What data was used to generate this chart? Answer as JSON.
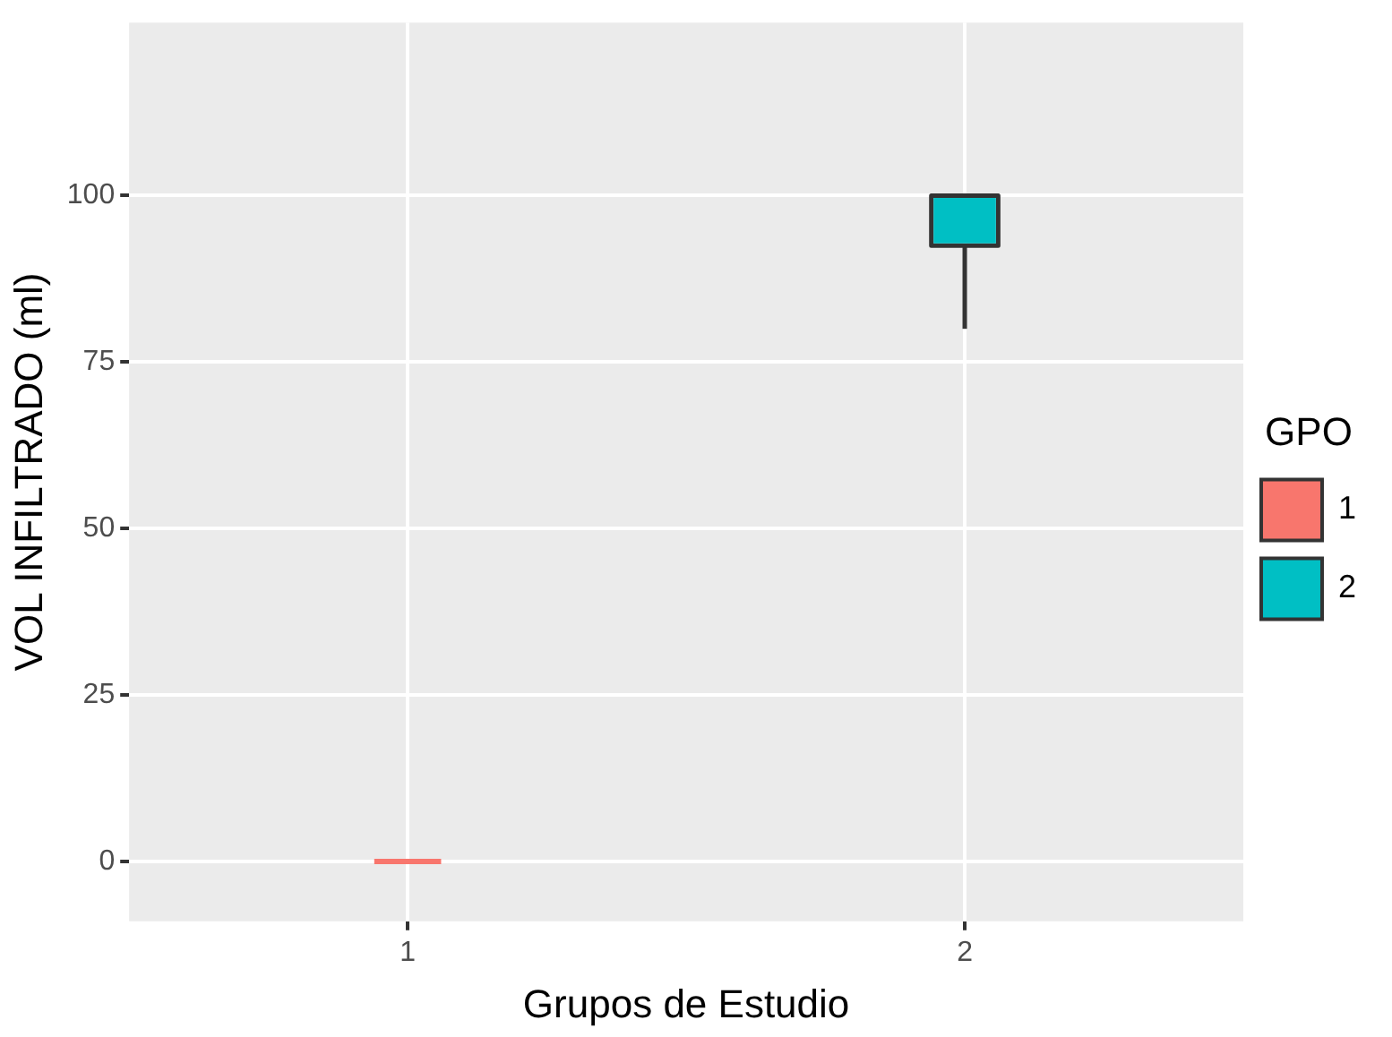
{
  "chart_data": {
    "type": "box",
    "xlabel": "Grupos de Estudio",
    "ylabel": "VOL INFILTRADO (ml)",
    "legend_title": "GPO",
    "categories": [
      "1",
      "2"
    ],
    "series": [
      {
        "name": "1",
        "color": "#f8766d",
        "boxes": [
          {
            "low": 0,
            "q1": 0,
            "median": 0,
            "q3": 0,
            "high": 0
          },
          null
        ]
      },
      {
        "name": "2",
        "color": "#00bfc4",
        "boxes": [
          null,
          {
            "low": 80,
            "q1": 92.5,
            "median": 100,
            "q3": 100,
            "high": 100
          }
        ]
      }
    ],
    "ylim": [
      -9,
      126
    ],
    "yticks": [
      0,
      25,
      50,
      75,
      100
    ],
    "grid": true,
    "legend": "right"
  }
}
